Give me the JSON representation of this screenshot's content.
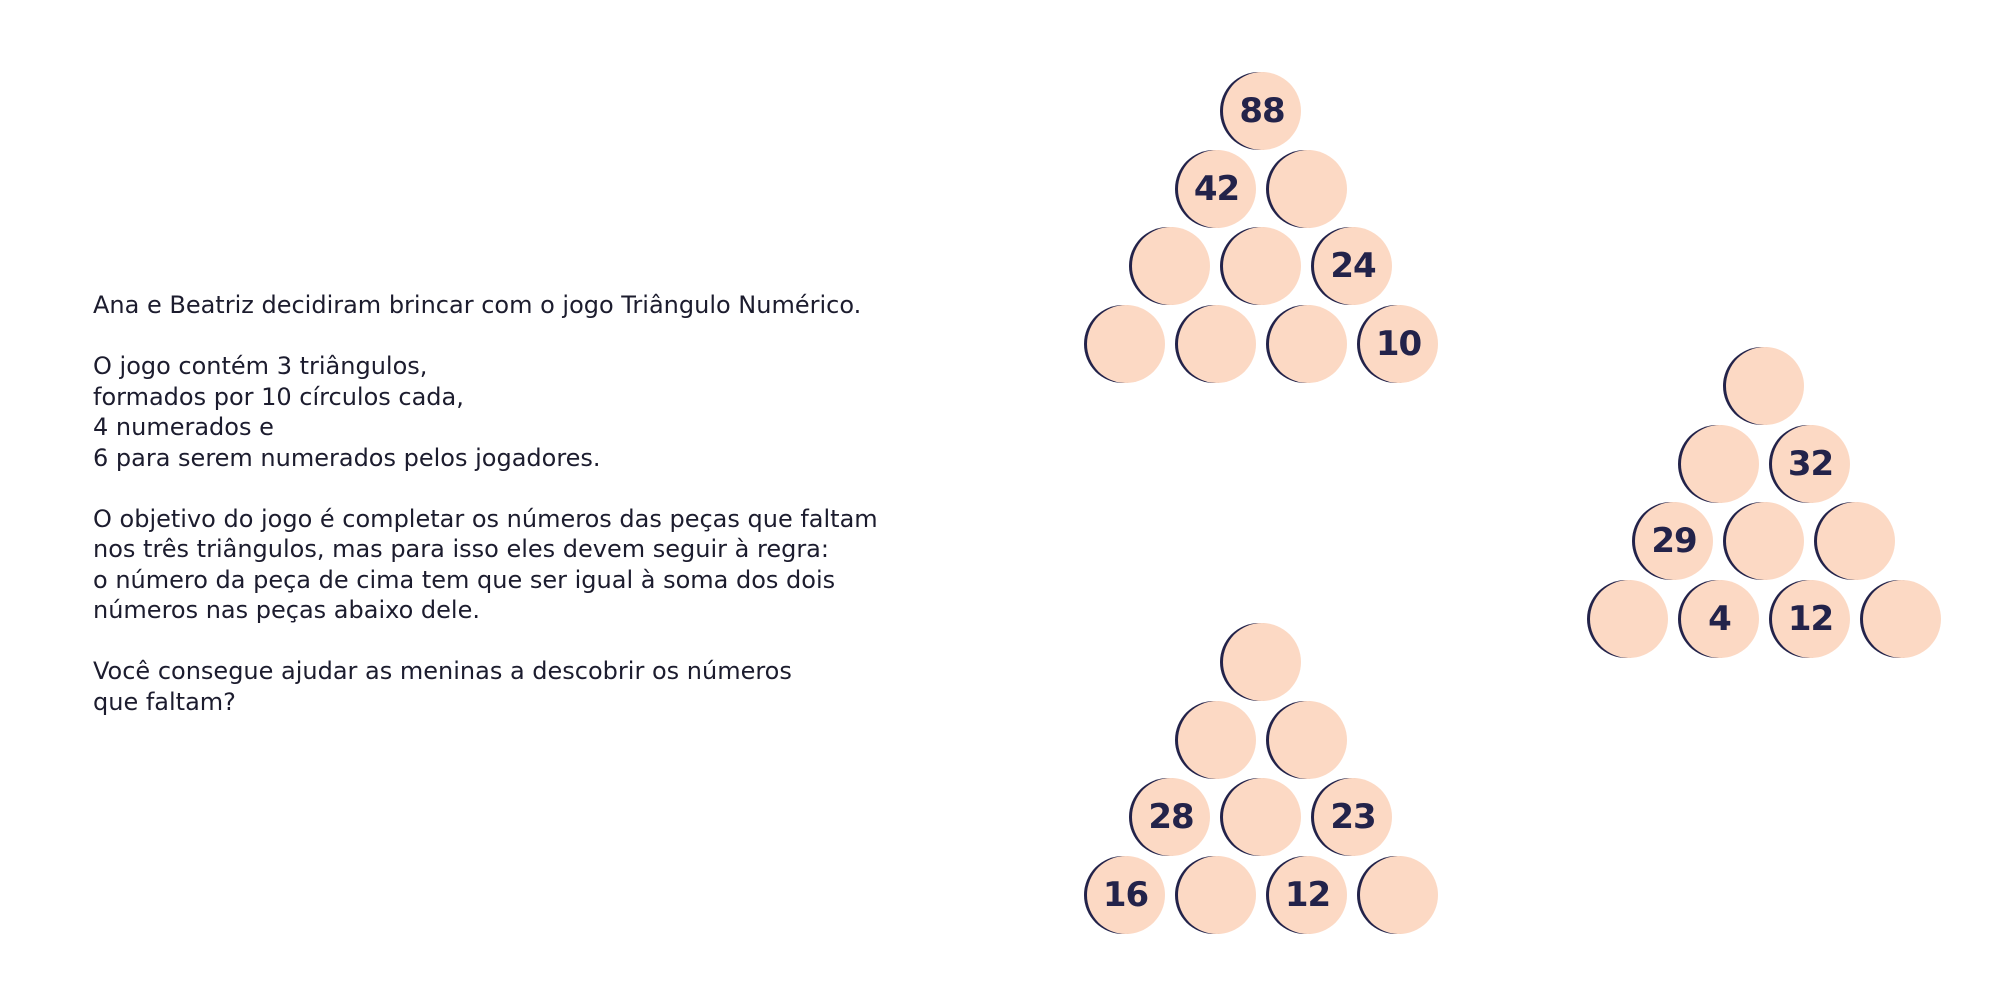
{
  "instructions": {
    "intro": "Ana e Beatriz decidiram brincar com o jogo Triângulo Numérico.",
    "description_lines": [
      "O jogo contém 3 triângulos,",
      "formados por 10 círculos cada,",
      "4 numerados e",
      "6 para serem numerados pelos jogadores."
    ],
    "rule_lines": [
      "O objetivo do jogo é completar os números das peças que faltam",
      "nos três triângulos, mas para isso eles devem seguir à regra:",
      "o número da peça de cima tem que ser igual à soma dos dois",
      "números nas peças abaixo dele."
    ],
    "question_lines": [
      "Você consegue ajudar as meninas a descobrir os números",
      "que faltam?"
    ]
  },
  "colors": {
    "circle_fill": "#fcd9c4",
    "circle_shadow": "#23234a",
    "number": "#23234a",
    "text": "#1c1c2e"
  },
  "triangles": [
    {
      "rows": [
        [
          "88"
        ],
        [
          "42",
          ""
        ],
        [
          "",
          "",
          "24"
        ],
        [
          "",
          "",
          "",
          "10"
        ]
      ]
    },
    {
      "rows": [
        [
          ""
        ],
        [
          "",
          "32"
        ],
        [
          "29",
          "",
          ""
        ],
        [
          "",
          "4",
          "12",
          ""
        ]
      ]
    },
    {
      "rows": [
        [
          ""
        ],
        [
          "",
          ""
        ],
        [
          "28",
          "",
          "23"
        ],
        [
          "16",
          "",
          "12",
          ""
        ]
      ]
    }
  ]
}
